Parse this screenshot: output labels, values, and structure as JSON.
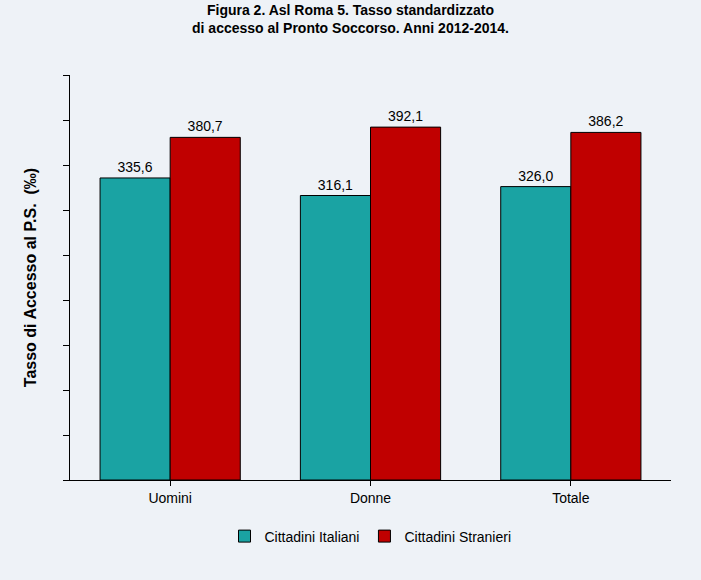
{
  "chart_data": {
    "type": "bar",
    "title": "Figura 2. Asl Roma 5. Tasso standardizzato di accesso al Pronto Soccorso. Anni 2012-2014.",
    "y_label": "Tasso di Accesso al P.S.  (‰)",
    "categories": [
      "Uomini",
      "Donne",
      "Totale"
    ],
    "series": [
      {
        "name": "Cittadini Italiani",
        "color": "#1aa3a3",
        "values": [
          335.6,
          316.1,
          326.0
        ],
        "value_labels": [
          "335,6",
          "316,1",
          "326,0"
        ]
      },
      {
        "name": "Cittadini Stranieri",
        "color": "#c00000",
        "values": [
          380.7,
          392.1,
          386.2
        ],
        "value_labels": [
          "380,7",
          "392,1",
          "386,2"
        ]
      }
    ],
    "ylim": [
      0,
      450
    ],
    "yticks": [
      0,
      50,
      100,
      150,
      200,
      250,
      300,
      350,
      400,
      450
    ],
    "grid": false,
    "legend": "bottom",
    "data_labels": true,
    "tick_labels": "x"
  }
}
